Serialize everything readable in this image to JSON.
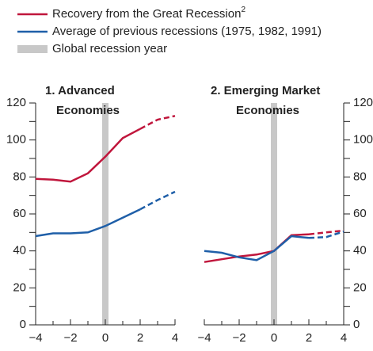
{
  "chart_data": [
    {
      "type": "line",
      "title": [
        "1. Advanced",
        "Economies"
      ],
      "x": [
        -4,
        -3,
        -2,
        -1,
        0,
        1,
        2,
        3,
        4
      ],
      "xlim": [
        -4,
        4
      ],
      "xticks": [
        {
          "value": -4,
          "label": "−4"
        },
        {
          "value": -2,
          "label": "−2"
        },
        0,
        2,
        4
      ],
      "xminorticks": [
        -3,
        -1,
        1,
        3
      ],
      "ylim": [
        0,
        120
      ],
      "yticks": [
        0,
        20,
        40,
        60,
        80,
        100,
        120
      ],
      "yminorticks": [
        10,
        30,
        50,
        70,
        90,
        110
      ],
      "yaxis_side": "left",
      "dashed_from_x": 2,
      "shade_x": 0,
      "shade": {
        "label": "Global recession year",
        "color": "#c8c8c8"
      },
      "series": [
        {
          "name": "Recovery from the Great Recession",
          "note": "2",
          "color": "#c0163c",
          "values": [
            79,
            78.5,
            77.5,
            82,
            91,
            101,
            106,
            111,
            113
          ]
        },
        {
          "name": "Average of previous recessions (1975, 1982, 1991)",
          "color": "#1f5fa8",
          "values": [
            48,
            49.5,
            49.5,
            50,
            53.5,
            58,
            62.5,
            67.5,
            72
          ]
        }
      ]
    },
    {
      "type": "line",
      "title": [
        "2. Emerging Market",
        "Economies"
      ],
      "x": [
        -4,
        -3,
        -2,
        -1,
        0,
        1,
        2,
        3,
        4
      ],
      "xlim": [
        -4,
        4
      ],
      "xticks": [
        {
          "value": -4,
          "label": "−4"
        },
        {
          "value": -2,
          "label": "−2"
        },
        0,
        2,
        4
      ],
      "xminorticks": [
        -3,
        -1,
        1,
        3
      ],
      "ylim": [
        0,
        120
      ],
      "yticks": [
        0,
        20,
        40,
        60,
        80,
        100,
        120
      ],
      "yminorticks": [
        10,
        30,
        50,
        70,
        90,
        110
      ],
      "yaxis_side": "right",
      "dashed_from_x": 2,
      "shade_x": 0,
      "shade": {
        "color": "#c8c8c8"
      },
      "series": [
        {
          "color": "#c0163c",
          "values": [
            34,
            35.5,
            37,
            38,
            40,
            48.5,
            49,
            50,
            51
          ]
        },
        {
          "color": "#1f5fa8",
          "values": [
            40,
            39,
            36.5,
            35,
            40,
            48,
            47,
            47.5,
            50.5
          ]
        }
      ]
    }
  ]
}
